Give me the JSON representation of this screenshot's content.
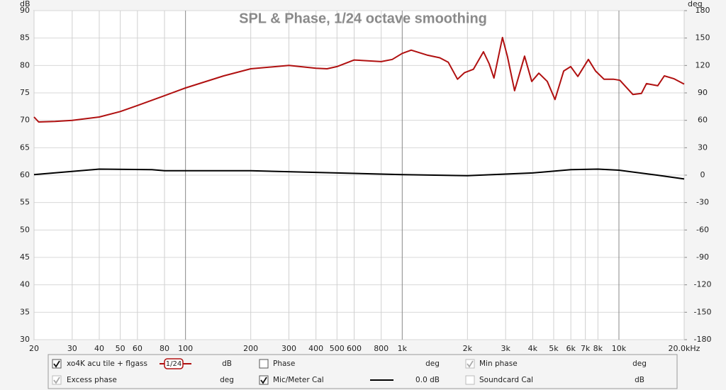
{
  "chart_data": {
    "type": "line",
    "title": "SPL & Phase, 1/24 octave smoothing",
    "ylabel": "dB",
    "y2label": "deg",
    "xscale": "log",
    "grid": true,
    "xlim": [
      20,
      20000
    ],
    "xticks": [
      20,
      30,
      40,
      50,
      60,
      80,
      100,
      200,
      300,
      400,
      500,
      600,
      800,
      {
        "value": 1000,
        "label": "1k"
      },
      {
        "value": 2000,
        "label": "2k"
      },
      {
        "value": 3000,
        "label": "3k"
      },
      {
        "value": 4000,
        "label": "4k"
      },
      {
        "value": 5000,
        "label": "5k"
      },
      {
        "value": 6000,
        "label": "6k"
      },
      {
        "value": 7000,
        "label": "7k"
      },
      {
        "value": 8000,
        "label": "8k"
      },
      {
        "value": 10000,
        "label": "10k"
      },
      {
        "value": 20000,
        "label": "20.0kHz"
      }
    ],
    "ylim": [
      30,
      90
    ],
    "yticks": [
      30,
      35,
      40,
      45,
      50,
      55,
      60,
      65,
      70,
      75,
      80,
      85,
      90
    ],
    "y2lim": [
      -180,
      180
    ],
    "y2ticks": [
      -180,
      -150,
      -120,
      -90,
      -60,
      -30,
      0,
      30,
      60,
      90,
      120,
      150,
      180
    ],
    "series": [
      {
        "name": "xo4K acu tile + flgass",
        "color": "#b01010",
        "x": [
          20,
          21,
          25,
          30,
          40,
          50,
          60,
          80,
          100,
          150,
          200,
          300,
          400,
          450,
          500,
          600,
          800,
          900,
          1000,
          1100,
          1300,
          1490,
          1630,
          1800,
          1940,
          2130,
          2370,
          2520,
          2650,
          2900,
          3060,
          3300,
          3670,
          3960,
          4270,
          4670,
          5070,
          5560,
          5990,
          6460,
          7230,
          7800,
          8530,
          9420,
          10100,
          11600,
          12700,
          13400,
          15100,
          16200,
          17900,
          20000
        ],
        "values": [
          70.6,
          69.7,
          69.8,
          70.0,
          70.6,
          71.6,
          72.7,
          74.5,
          75.9,
          78.1,
          79.4,
          80.0,
          79.5,
          79.4,
          79.8,
          81.0,
          80.7,
          81.1,
          82.2,
          82.8,
          81.9,
          81.4,
          80.6,
          77.5,
          78.7,
          79.3,
          82.5,
          80.3,
          77.7,
          85.1,
          81.6,
          75.4,
          81.7,
          77.1,
          78.6,
          77.1,
          73.8,
          79.0,
          79.8,
          78.0,
          81.1,
          79.0,
          77.5,
          77.5,
          77.3,
          74.7,
          74.9,
          76.7,
          76.3,
          78.1,
          77.6,
          76.6
        ]
      },
      {
        "name": "Mic/Meter Cal",
        "color": "#000000",
        "x": [
          20,
          40,
          70,
          80,
          200,
          500,
          1000,
          2000,
          4000,
          6000,
          8000,
          10000,
          15000,
          20000
        ],
        "values": [
          60.1,
          61.1,
          61.0,
          60.8,
          60.8,
          60.4,
          60.1,
          59.9,
          60.4,
          61.0,
          61.1,
          60.9,
          60.0,
          59.3
        ]
      }
    ]
  },
  "controls": {
    "items": [
      {
        "label": "xo4K acu tile + flgass",
        "smoothing": "1/24",
        "unit": "dB",
        "checked": true,
        "enabled": true,
        "color": "#b01010"
      },
      {
        "label": "Phase",
        "unit": "deg",
        "checked": false,
        "enabled": true,
        "color": "#b01010"
      },
      {
        "label": "Min phase",
        "unit": "deg",
        "checked": true,
        "enabled": false,
        "color": "#a0a0a0"
      },
      {
        "label": "Excess phase",
        "unit": "deg",
        "checked": true,
        "enabled": false,
        "color": "#a0a0a0"
      },
      {
        "label": "Mic/Meter Cal",
        "value": "0.0 dB",
        "checked": true,
        "enabled": true,
        "color": "#000000"
      },
      {
        "label": "Soundcard Cal",
        "unit": "dB",
        "checked": false,
        "enabled": false,
        "color": "#a0a0a0"
      }
    ]
  }
}
